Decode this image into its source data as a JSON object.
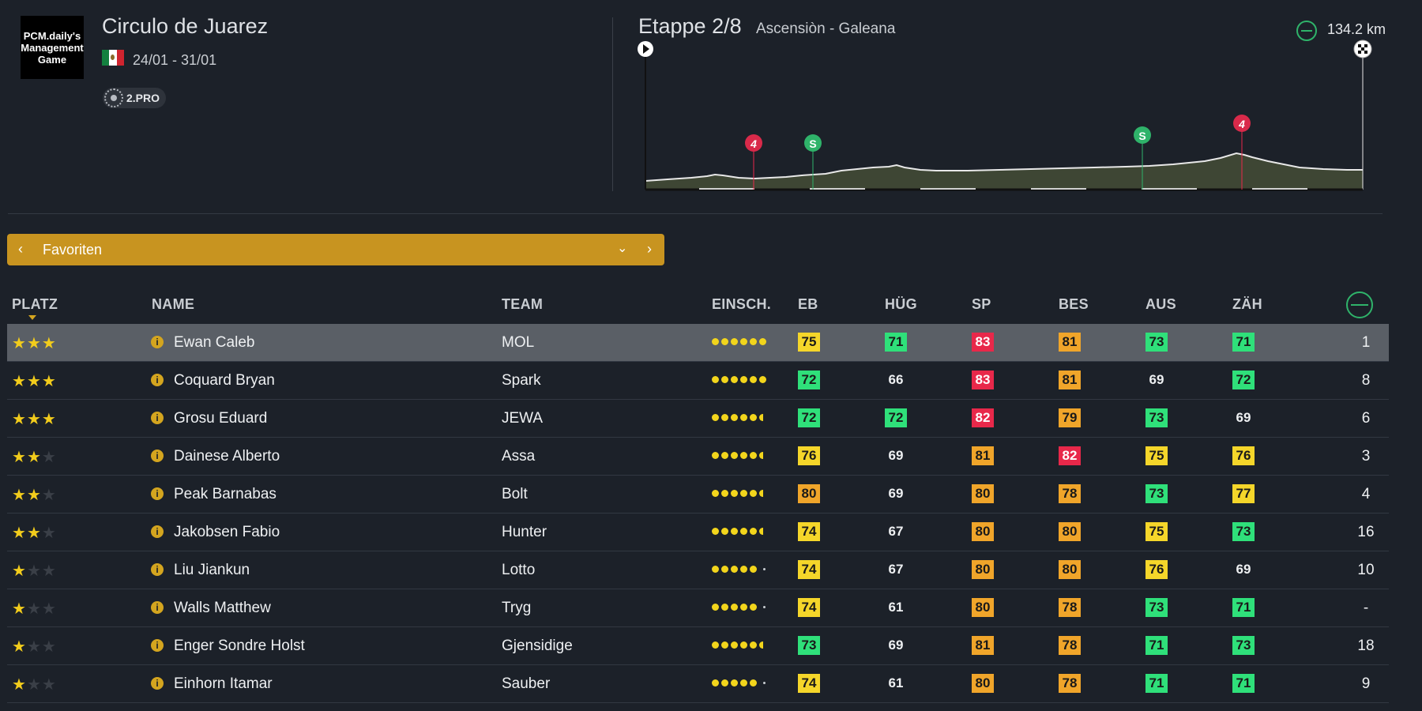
{
  "logo": {
    "lines": [
      "PCM.daily's",
      "Management",
      "Game"
    ]
  },
  "race": {
    "title": "Circulo de Juarez",
    "dates": "24/01 - 31/01",
    "category": "2.PRO"
  },
  "stage": {
    "title": "Etappe 2/8",
    "route": "Ascensiòn - Galeana",
    "distance": "134.2 km",
    "markers": [
      {
        "label": "4",
        "type": "climb"
      },
      {
        "label": "S",
        "type": "sprint"
      },
      {
        "label": "S",
        "type": "sprint"
      },
      {
        "label": "4",
        "type": "climb"
      }
    ]
  },
  "filter": {
    "label": "Favoriten",
    "prev": "‹",
    "next": "›",
    "chevron": "⌄"
  },
  "columns": {
    "platz": "PLATZ",
    "name": "NAME",
    "team": "TEAM",
    "einsch": "EINSCH.",
    "eb": "EB",
    "hug": "HÜG",
    "sp": "SP",
    "bes": "BES",
    "aus": "AUS",
    "zah": "ZÄH"
  },
  "colors": {
    "y": "#f5d62a",
    "o": "#f0a52a",
    "g": "#2fe07a",
    "r": "#e8284a",
    "accent": "#c89420"
  },
  "riders": [
    {
      "stars": 3,
      "name": "Ewan Caleb",
      "team": "MOL",
      "dots": "6",
      "stats": [
        [
          "75",
          "y"
        ],
        [
          "71",
          "g"
        ],
        [
          "83",
          "r"
        ],
        [
          "81",
          "o"
        ],
        [
          "73",
          "g"
        ],
        [
          "71",
          "g"
        ]
      ],
      "rank": "1"
    },
    {
      "stars": 3,
      "name": "Coquard Bryan",
      "team": "Spark",
      "dots": "6",
      "stats": [
        [
          "72",
          "g"
        ],
        [
          "66",
          "n"
        ],
        [
          "83",
          "r"
        ],
        [
          "81",
          "o"
        ],
        [
          "69",
          "n"
        ],
        [
          "72",
          "g"
        ]
      ],
      "rank": "8"
    },
    {
      "stars": 3,
      "name": "Grosu Eduard",
      "team": "JEWA",
      "dots": "5h",
      "stats": [
        [
          "72",
          "g"
        ],
        [
          "72",
          "g"
        ],
        [
          "82",
          "r"
        ],
        [
          "79",
          "o"
        ],
        [
          "73",
          "g"
        ],
        [
          "69",
          "n"
        ]
      ],
      "rank": "6"
    },
    {
      "stars": 2,
      "name": "Dainese Alberto",
      "team": "Assa",
      "dots": "5h",
      "stats": [
        [
          "76",
          "y"
        ],
        [
          "69",
          "n"
        ],
        [
          "81",
          "o"
        ],
        [
          "82",
          "r"
        ],
        [
          "75",
          "y"
        ],
        [
          "76",
          "y"
        ]
      ],
      "rank": "3"
    },
    {
      "stars": 2,
      "name": "Peak Barnabas",
      "team": "Bolt",
      "dots": "5h",
      "stats": [
        [
          "80",
          "o"
        ],
        [
          "69",
          "n"
        ],
        [
          "80",
          "o"
        ],
        [
          "78",
          "o"
        ],
        [
          "73",
          "g"
        ],
        [
          "77",
          "y"
        ]
      ],
      "rank": "4"
    },
    {
      "stars": 2,
      "name": "Jakobsen Fabio",
      "team": "Hunter",
      "dots": "5h",
      "stats": [
        [
          "74",
          "y"
        ],
        [
          "67",
          "n"
        ],
        [
          "80",
          "o"
        ],
        [
          "80",
          "o"
        ],
        [
          "75",
          "y"
        ],
        [
          "73",
          "g"
        ]
      ],
      "rank": "16"
    },
    {
      "stars": 1,
      "name": "Liu Jiankun",
      "team": "Lotto",
      "dots": "5t",
      "stats": [
        [
          "74",
          "y"
        ],
        [
          "67",
          "n"
        ],
        [
          "80",
          "o"
        ],
        [
          "80",
          "o"
        ],
        [
          "76",
          "y"
        ],
        [
          "69",
          "n"
        ]
      ],
      "rank": "10"
    },
    {
      "stars": 1,
      "name": "Walls Matthew",
      "team": "Tryg",
      "dots": "5t",
      "stats": [
        [
          "74",
          "y"
        ],
        [
          "61",
          "n"
        ],
        [
          "80",
          "o"
        ],
        [
          "78",
          "o"
        ],
        [
          "73",
          "g"
        ],
        [
          "71",
          "g"
        ]
      ],
      "rank": "-"
    },
    {
      "stars": 1,
      "name": "Enger Sondre Holst",
      "team": "Gjensidige",
      "dots": "5h",
      "stats": [
        [
          "73",
          "g"
        ],
        [
          "69",
          "n"
        ],
        [
          "81",
          "o"
        ],
        [
          "78",
          "o"
        ],
        [
          "71",
          "g"
        ],
        [
          "73",
          "g"
        ]
      ],
      "rank": "18"
    },
    {
      "stars": 1,
      "name": "Einhorn Itamar",
      "team": "Sauber",
      "dots": "5t",
      "stats": [
        [
          "74",
          "y"
        ],
        [
          "61",
          "n"
        ],
        [
          "80",
          "o"
        ],
        [
          "78",
          "o"
        ],
        [
          "71",
          "g"
        ],
        [
          "71",
          "g"
        ]
      ],
      "rank": "9"
    }
  ]
}
